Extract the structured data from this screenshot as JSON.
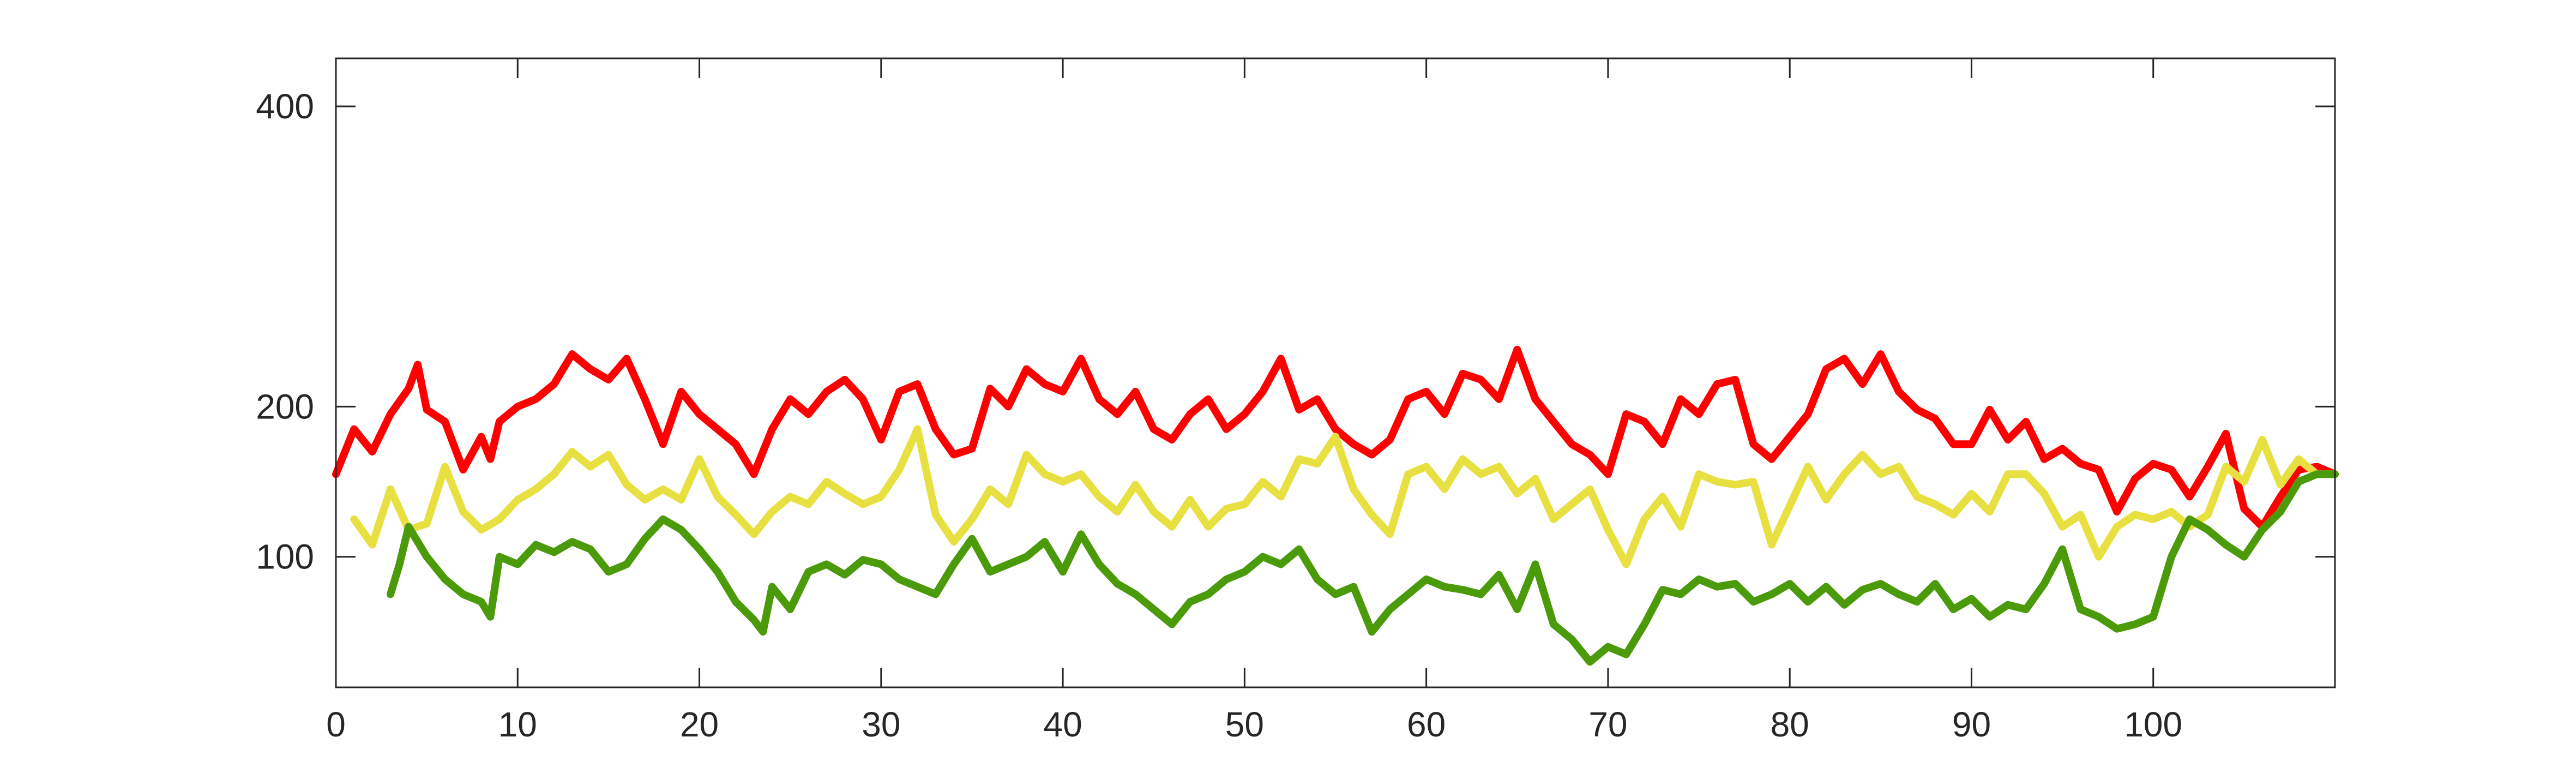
{
  "chart_data": {
    "type": "line",
    "title": "",
    "xlabel": "",
    "ylabel": "",
    "xlim": [
      0,
      110
    ],
    "ylim": [
      13,
      432
    ],
    "xticks": [
      0,
      10,
      20,
      30,
      40,
      50,
      60,
      70,
      80,
      90,
      100
    ],
    "yticks": [
      100,
      200,
      400
    ],
    "xtick_labels": [
      "0",
      "10",
      "20",
      "30",
      "40",
      "50",
      "60",
      "70",
      "80",
      "90",
      "100"
    ],
    "ytick_labels": [
      "100",
      "200",
      "400"
    ],
    "grid": false,
    "legend": "none",
    "series": [
      {
        "color": "#ff0000",
        "points": [
          [
            0,
            155
          ],
          [
            1,
            185
          ],
          [
            2,
            170
          ],
          [
            3,
            195
          ],
          [
            4,
            212
          ],
          [
            4.5,
            228
          ],
          [
            5,
            198
          ],
          [
            6,
            190
          ],
          [
            7,
            158
          ],
          [
            8,
            180
          ],
          [
            8.5,
            165
          ],
          [
            9,
            190
          ],
          [
            10,
            200
          ],
          [
            11,
            205
          ],
          [
            12,
            215
          ],
          [
            13,
            235
          ],
          [
            14,
            225
          ],
          [
            15,
            218
          ],
          [
            16,
            232
          ],
          [
            17,
            205
          ],
          [
            18,
            175
          ],
          [
            19,
            210
          ],
          [
            20,
            195
          ],
          [
            21,
            185
          ],
          [
            22,
            175
          ],
          [
            23,
            155
          ],
          [
            24,
            185
          ],
          [
            25,
            205
          ],
          [
            26,
            195
          ],
          [
            27,
            210
          ],
          [
            28,
            218
          ],
          [
            29,
            205
          ],
          [
            30,
            178
          ],
          [
            31,
            210
          ],
          [
            32,
            215
          ],
          [
            33,
            185
          ],
          [
            34,
            168
          ],
          [
            35,
            172
          ],
          [
            36,
            212
          ],
          [
            37,
            200
          ],
          [
            38,
            225
          ],
          [
            39,
            215
          ],
          [
            40,
            210
          ],
          [
            41,
            232
          ],
          [
            42,
            205
          ],
          [
            43,
            195
          ],
          [
            44,
            210
          ],
          [
            45,
            185
          ],
          [
            46,
            178
          ],
          [
            47,
            195
          ],
          [
            48,
            205
          ],
          [
            49,
            185
          ],
          [
            50,
            195
          ],
          [
            51,
            210
          ],
          [
            52,
            232
          ],
          [
            53,
            198
          ],
          [
            54,
            205
          ],
          [
            55,
            185
          ],
          [
            56,
            175
          ],
          [
            57,
            168
          ],
          [
            58,
            178
          ],
          [
            59,
            205
          ],
          [
            60,
            210
          ],
          [
            61,
            195
          ],
          [
            62,
            222
          ],
          [
            63,
            218
          ],
          [
            64,
            205
          ],
          [
            65,
            238
          ],
          [
            66,
            205
          ],
          [
            67,
            190
          ],
          [
            68,
            175
          ],
          [
            69,
            168
          ],
          [
            70,
            155
          ],
          [
            71,
            195
          ],
          [
            72,
            190
          ],
          [
            73,
            175
          ],
          [
            74,
            205
          ],
          [
            75,
            195
          ],
          [
            76,
            215
          ],
          [
            77,
            218
          ],
          [
            78,
            175
          ],
          [
            79,
            165
          ],
          [
            81,
            195
          ],
          [
            82,
            225
          ],
          [
            83,
            232
          ],
          [
            84,
            215
          ],
          [
            85,
            235
          ],
          [
            86,
            210
          ],
          [
            87,
            198
          ],
          [
            88,
            192
          ],
          [
            89,
            175
          ],
          [
            90,
            175
          ],
          [
            91,
            198
          ],
          [
            92,
            178
          ],
          [
            93,
            190
          ],
          [
            94,
            165
          ],
          [
            95,
            172
          ],
          [
            96,
            162
          ],
          [
            97,
            158
          ],
          [
            98,
            130
          ],
          [
            99,
            152
          ],
          [
            100,
            162
          ],
          [
            101,
            158
          ],
          [
            102,
            140
          ],
          [
            103,
            160
          ],
          [
            104,
            182
          ],
          [
            105,
            132
          ],
          [
            106,
            120
          ],
          [
            107,
            140
          ],
          [
            108,
            158
          ],
          [
            109,
            160
          ],
          [
            110,
            155
          ]
        ]
      },
      {
        "color": "#e8e040",
        "points": [
          [
            1,
            125
          ],
          [
            2,
            108
          ],
          [
            3,
            145
          ],
          [
            4,
            118
          ],
          [
            5,
            122
          ],
          [
            6,
            160
          ],
          [
            7,
            130
          ],
          [
            8,
            118
          ],
          [
            9,
            125
          ],
          [
            10,
            138
          ],
          [
            11,
            145
          ],
          [
            12,
            155
          ],
          [
            13,
            170
          ],
          [
            14,
            160
          ],
          [
            15,
            168
          ],
          [
            16,
            148
          ],
          [
            17,
            138
          ],
          [
            18,
            145
          ],
          [
            19,
            138
          ],
          [
            20,
            165
          ],
          [
            21,
            140
          ],
          [
            22,
            128
          ],
          [
            23,
            115
          ],
          [
            24,
            130
          ],
          [
            25,
            140
          ],
          [
            26,
            135
          ],
          [
            27,
            150
          ],
          [
            28,
            142
          ],
          [
            29,
            135
          ],
          [
            30,
            140
          ],
          [
            31,
            158
          ],
          [
            32,
            185
          ],
          [
            33,
            128
          ],
          [
            34,
            110
          ],
          [
            35,
            125
          ],
          [
            36,
            145
          ],
          [
            37,
            135
          ],
          [
            38,
            168
          ],
          [
            39,
            155
          ],
          [
            40,
            150
          ],
          [
            41,
            155
          ],
          [
            42,
            140
          ],
          [
            43,
            130
          ],
          [
            44,
            148
          ],
          [
            45,
            130
          ],
          [
            46,
            120
          ],
          [
            47,
            138
          ],
          [
            48,
            120
          ],
          [
            49,
            132
          ],
          [
            50,
            135
          ],
          [
            51,
            150
          ],
          [
            52,
            140
          ],
          [
            53,
            165
          ],
          [
            54,
            162
          ],
          [
            55,
            180
          ],
          [
            56,
            145
          ],
          [
            57,
            128
          ],
          [
            58,
            115
          ],
          [
            59,
            155
          ],
          [
            60,
            160
          ],
          [
            61,
            145
          ],
          [
            62,
            165
          ],
          [
            63,
            155
          ],
          [
            64,
            160
          ],
          [
            65,
            142
          ],
          [
            66,
            152
          ],
          [
            67,
            125
          ],
          [
            68,
            135
          ],
          [
            69,
            145
          ],
          [
            70,
            118
          ],
          [
            71,
            95
          ],
          [
            72,
            125
          ],
          [
            73,
            140
          ],
          [
            74,
            120
          ],
          [
            75,
            155
          ],
          [
            76,
            150
          ],
          [
            77,
            148
          ],
          [
            78,
            150
          ],
          [
            79,
            108
          ],
          [
            81,
            160
          ],
          [
            82,
            138
          ],
          [
            83,
            155
          ],
          [
            84,
            168
          ],
          [
            85,
            155
          ],
          [
            86,
            160
          ],
          [
            87,
            140
          ],
          [
            88,
            135
          ],
          [
            89,
            128
          ],
          [
            90,
            142
          ],
          [
            91,
            130
          ],
          [
            92,
            155
          ],
          [
            93,
            155
          ],
          [
            94,
            142
          ],
          [
            95,
            120
          ],
          [
            96,
            128
          ],
          [
            97,
            100
          ],
          [
            98,
            120
          ],
          [
            99,
            128
          ],
          [
            100,
            125
          ],
          [
            101,
            130
          ],
          [
            102,
            120
          ],
          [
            103,
            128
          ],
          [
            104,
            160
          ],
          [
            105,
            150
          ],
          [
            106,
            178
          ],
          [
            107,
            148
          ],
          [
            108,
            165
          ],
          [
            109,
            155
          ],
          [
            110,
            155
          ]
        ]
      },
      {
        "color": "#4a9a0a",
        "points": [
          [
            3,
            75
          ],
          [
            3.5,
            95
          ],
          [
            4,
            120
          ],
          [
            5,
            100
          ],
          [
            6,
            85
          ],
          [
            7,
            75
          ],
          [
            8,
            70
          ],
          [
            8.5,
            60
          ],
          [
            9,
            100
          ],
          [
            10,
            95
          ],
          [
            11,
            108
          ],
          [
            12,
            103
          ],
          [
            13,
            110
          ],
          [
            14,
            105
          ],
          [
            15,
            90
          ],
          [
            16,
            95
          ],
          [
            17,
            112
          ],
          [
            18,
            125
          ],
          [
            19,
            118
          ],
          [
            20,
            105
          ],
          [
            21,
            90
          ],
          [
            22,
            70
          ],
          [
            23,
            58
          ],
          [
            23.5,
            50
          ],
          [
            24,
            80
          ],
          [
            25,
            65
          ],
          [
            26,
            90
          ],
          [
            27,
            95
          ],
          [
            28,
            88
          ],
          [
            29,
            98
          ],
          [
            30,
            95
          ],
          [
            31,
            85
          ],
          [
            32,
            80
          ],
          [
            33,
            75
          ],
          [
            34,
            95
          ],
          [
            35,
            112
          ],
          [
            36,
            90
          ],
          [
            37,
            95
          ],
          [
            38,
            100
          ],
          [
            39,
            110
          ],
          [
            40,
            90
          ],
          [
            41,
            115
          ],
          [
            42,
            95
          ],
          [
            43,
            82
          ],
          [
            44,
            75
          ],
          [
            45,
            65
          ],
          [
            46,
            55
          ],
          [
            47,
            70
          ],
          [
            48,
            75
          ],
          [
            49,
            85
          ],
          [
            50,
            90
          ],
          [
            51,
            100
          ],
          [
            52,
            95
          ],
          [
            53,
            105
          ],
          [
            54,
            85
          ],
          [
            55,
            75
          ],
          [
            56,
            80
          ],
          [
            57,
            50
          ],
          [
            58,
            65
          ],
          [
            59,
            75
          ],
          [
            60,
            85
          ],
          [
            61,
            80
          ],
          [
            62,
            78
          ],
          [
            63,
            75
          ],
          [
            64,
            88
          ],
          [
            65,
            65
          ],
          [
            66,
            95
          ],
          [
            67,
            55
          ],
          [
            68,
            45
          ],
          [
            69,
            30
          ],
          [
            70,
            40
          ],
          [
            71,
            35
          ],
          [
            72,
            55
          ],
          [
            73,
            78
          ],
          [
            74,
            75
          ],
          [
            75,
            85
          ],
          [
            76,
            80
          ],
          [
            77,
            82
          ],
          [
            78,
            70
          ],
          [
            79,
            75
          ],
          [
            80,
            82
          ],
          [
            81,
            70
          ],
          [
            82,
            80
          ],
          [
            83,
            68
          ],
          [
            84,
            78
          ],
          [
            85,
            82
          ],
          [
            86,
            75
          ],
          [
            87,
            70
          ],
          [
            88,
            82
          ],
          [
            89,
            65
          ],
          [
            90,
            72
          ],
          [
            91,
            60
          ],
          [
            92,
            68
          ],
          [
            93,
            65
          ],
          [
            94,
            82
          ],
          [
            95,
            105
          ],
          [
            96,
            65
          ],
          [
            97,
            60
          ],
          [
            98,
            52
          ],
          [
            99,
            55
          ],
          [
            100,
            60
          ],
          [
            101,
            100
          ],
          [
            102,
            125
          ],
          [
            103,
            118
          ],
          [
            104,
            108
          ],
          [
            105,
            100
          ],
          [
            106,
            118
          ],
          [
            107,
            130
          ],
          [
            108,
            150
          ],
          [
            109,
            155
          ],
          [
            110,
            155
          ]
        ]
      }
    ]
  }
}
